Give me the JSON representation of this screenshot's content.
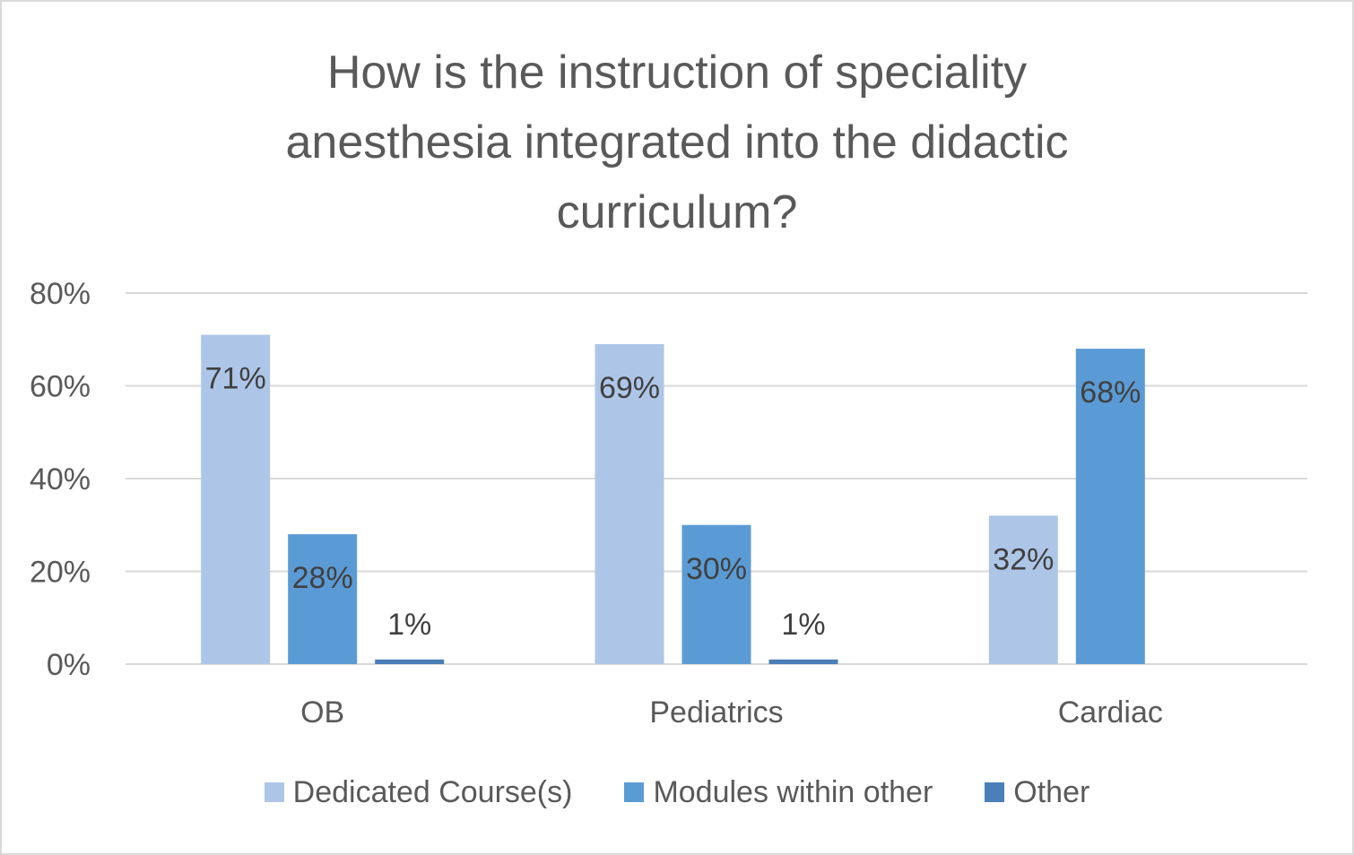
{
  "chart_data": {
    "type": "bar",
    "title": "How is the instruction of speciality\nanesthesia integrated into the didactic\ncurriculum?",
    "categories": [
      "OB",
      "Pediatrics",
      "Cardiac"
    ],
    "series": [
      {
        "name": "Dedicated Course(s)",
        "color": "#adc6e8",
        "values": [
          71,
          69,
          32
        ],
        "labels": [
          "71%",
          "69%",
          "32%"
        ]
      },
      {
        "name": "Modules within other",
        "color": "#5b9bd5",
        "values": [
          28,
          30,
          68
        ],
        "labels": [
          "28%",
          "30%",
          "68%"
        ]
      },
      {
        "name": "Other",
        "color": "#4a7fb8",
        "values": [
          1,
          1,
          null
        ],
        "labels": [
          "1%",
          "1%",
          null
        ]
      }
    ],
    "ylim": [
      0,
      80
    ],
    "yticks": [
      "0%",
      "20%",
      "40%",
      "60%",
      "80%"
    ],
    "ytick_values": [
      0,
      20,
      40,
      60,
      80
    ],
    "grid": true,
    "legend_position": "bottom"
  }
}
